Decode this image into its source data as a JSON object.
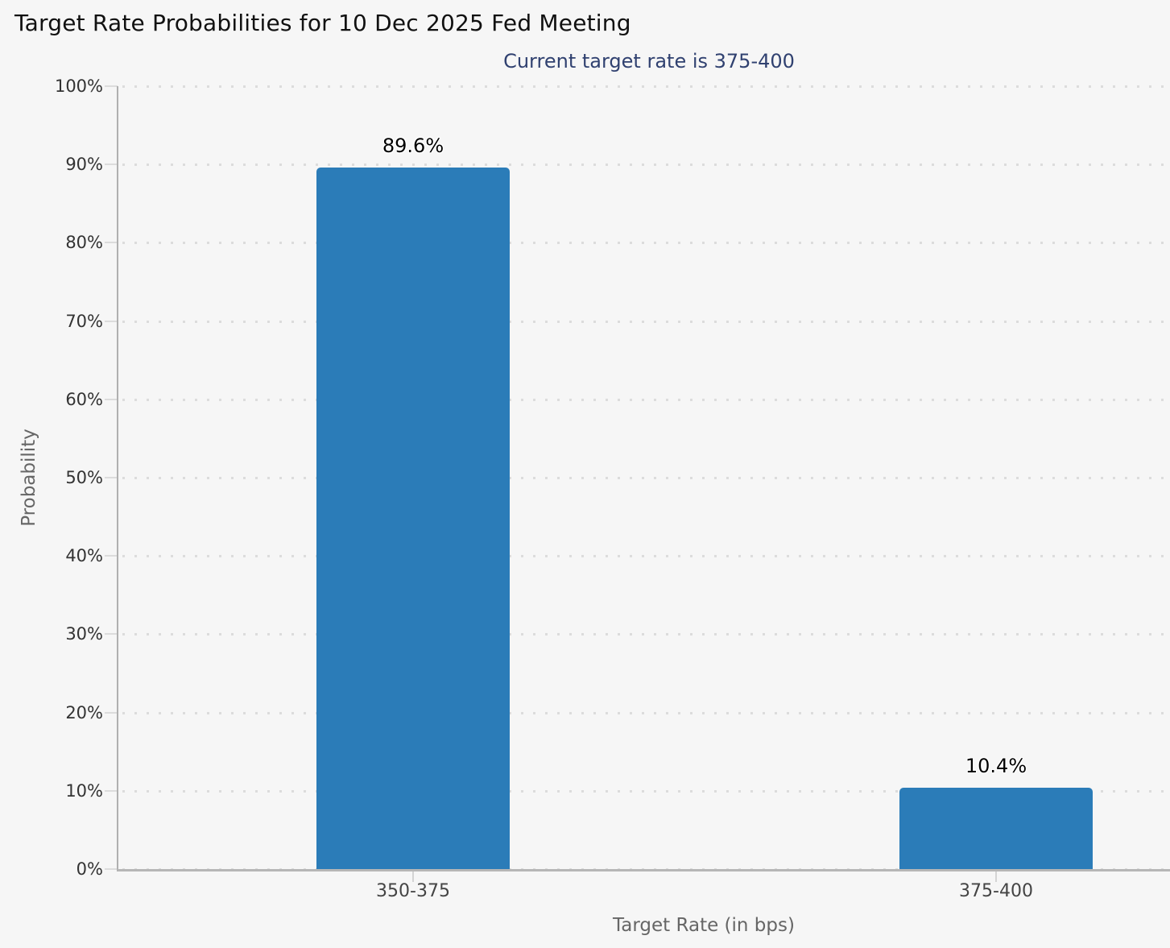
{
  "chart_data": {
    "type": "bar",
    "title": "Target Rate Probabilities for 10 Dec 2025 Fed Meeting",
    "subtitle": "Current target rate is 375-400",
    "categories": [
      "350-375",
      "375-400"
    ],
    "values": [
      89.6,
      10.4
    ],
    "data_labels": [
      "89.6%",
      "10.4%"
    ],
    "series_name": "Probability",
    "xlabel": "Target Rate (in bps)",
    "ylabel": "Probability",
    "ylim": [
      0,
      100
    ],
    "ytick_step": 10,
    "ytick_labels": [
      "0%",
      "10%",
      "20%",
      "30%",
      "40%",
      "50%",
      "60%",
      "70%",
      "80%",
      "90%",
      "100%"
    ],
    "grid": "horizontal-dotted",
    "legend": "none",
    "colors": {
      "bar": "#2b7cb8",
      "background": "#f6f6f6",
      "title_text": "#111111",
      "subtitle_text": "#304170",
      "gridline": "#dcdcdc",
      "axis_line": "#b3b3b3",
      "axis_label": "#333333",
      "axis_title": "#666666",
      "data_label": "#000000"
    }
  }
}
